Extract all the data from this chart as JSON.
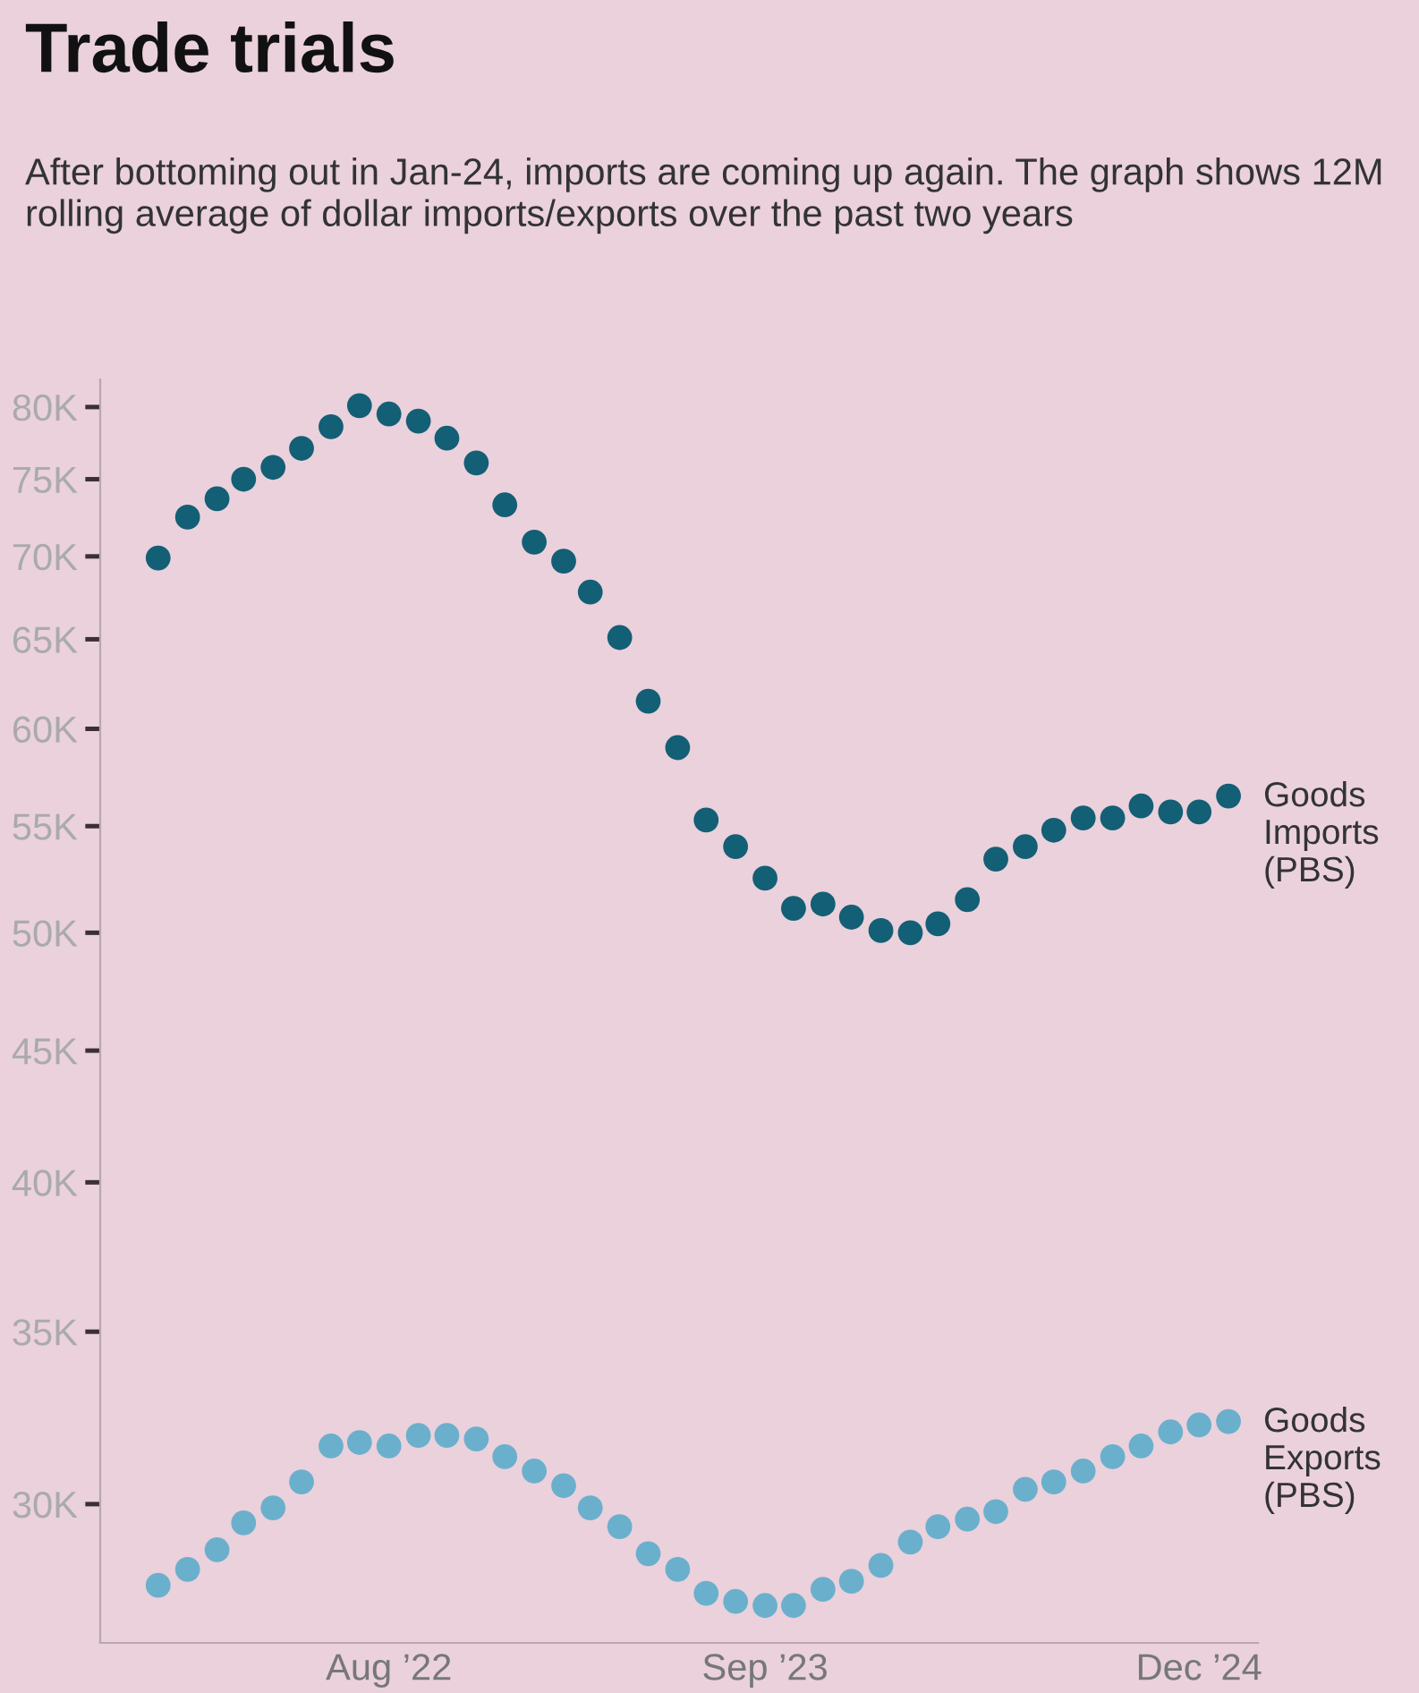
{
  "chart_data": {
    "type": "scatter",
    "title": "Trade trials",
    "subtitle": "After bottoming out in Jan-24, imports are coming up again. The graph shows 12M rolling average of dollar imports/exports over the past two years",
    "x": [
      "2021-12",
      "2022-01",
      "2022-02",
      "2022-03",
      "2022-04",
      "2022-05",
      "2022-06",
      "2022-07",
      "2022-08",
      "2022-09",
      "2022-10",
      "2022-11",
      "2022-12",
      "2023-01",
      "2023-02",
      "2023-03",
      "2023-04",
      "2023-05",
      "2023-06",
      "2023-07",
      "2023-08",
      "2023-09",
      "2023-10",
      "2023-11",
      "2023-12",
      "2024-01",
      "2024-02",
      "2024-03",
      "2024-04",
      "2024-05",
      "2024-06",
      "2024-07",
      "2024-08",
      "2024-09",
      "2024-10",
      "2024-11",
      "2024-12",
      "2025-01"
    ],
    "series": [
      {
        "name": "Goods Imports (PBS)",
        "color": "#135f75",
        "values": [
          69900,
          72500,
          73700,
          75000,
          75800,
          77100,
          78600,
          80100,
          79500,
          79000,
          77800,
          76100,
          73300,
          70900,
          69700,
          67800,
          65100,
          61500,
          59000,
          55300,
          54000,
          52500,
          51100,
          51300,
          50700,
          50100,
          50000,
          50400,
          51500,
          53400,
          54000,
          54800,
          55400,
          55400,
          56000,
          55700,
          55700,
          56500
        ]
      },
      {
        "name": "Goods Exports (PBS)",
        "color": "#6ab0cc",
        "values": [
          27900,
          28300,
          28800,
          29500,
          29900,
          30600,
          31600,
          31700,
          31600,
          31900,
          31900,
          31800,
          31300,
          30900,
          30500,
          29900,
          29400,
          28700,
          28300,
          27700,
          27500,
          27400,
          27400,
          27800,
          28000,
          28400,
          29000,
          29400,
          29600,
          29800,
          30400,
          30600,
          30900,
          31300,
          31600,
          32000,
          32200,
          32300
        ]
      }
    ],
    "log": "y",
    "xlim": [
      "2021-10",
      "2025-02"
    ],
    "xticks": [
      {
        "value": "2022-08",
        "label": "Aug ’22"
      },
      {
        "value": "2023-09",
        "label": "Sep ’23"
      },
      {
        "value": "2024-12",
        "label": "Dec ’24"
      }
    ],
    "ylim": [
      26500,
      82000
    ],
    "yticks": [
      {
        "value": 30000,
        "label": "30K"
      },
      {
        "value": 35000,
        "label": "35K"
      },
      {
        "value": 40000,
        "label": "40K"
      },
      {
        "value": 45000,
        "label": "45K"
      },
      {
        "value": 50000,
        "label": "50K"
      },
      {
        "value": 55000,
        "label": "55K"
      },
      {
        "value": 60000,
        "label": "60K"
      },
      {
        "value": 65000,
        "label": "65K"
      },
      {
        "value": 70000,
        "label": "70K"
      },
      {
        "value": 75000,
        "label": "75K"
      },
      {
        "value": 80000,
        "label": "80K"
      }
    ],
    "marker": "circle",
    "grid": false,
    "legend": false
  }
}
